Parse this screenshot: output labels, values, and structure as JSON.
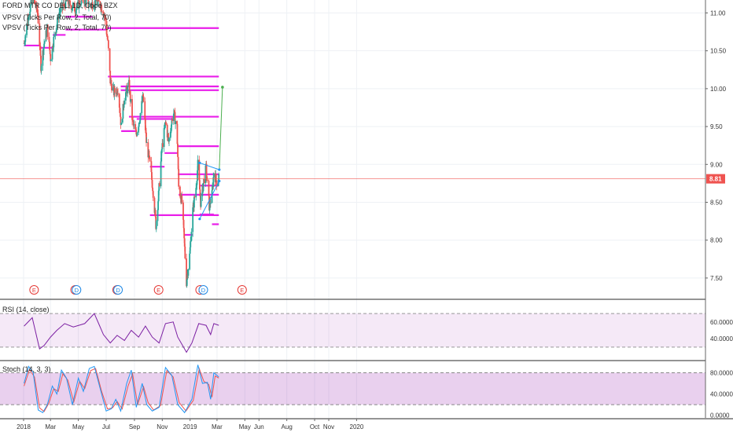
{
  "chart_data": {
    "type": "candlestick",
    "title": "FORD MTR CO DEL, 1D, Cboe BZX",
    "legend": [
      "VPSV (Ticks Per Row, 2, Total, 70)",
      "VPSV (Ticks Per Row, 2, Total, 70)"
    ],
    "price_axis": {
      "ticks": [
        "11.00",
        "10.50",
        "10.00",
        "9.50",
        "9.00",
        "8.50",
        "8.00",
        "7.50"
      ],
      "ylim": [
        7.25,
        11.15
      ]
    },
    "last_price": {
      "value": 8.81,
      "label": "8.81",
      "color": "#ef5350"
    },
    "time_axis": {
      "ticks": [
        "2018",
        "Mar",
        "May",
        "Jul",
        "Sep",
        "Nov",
        "2019",
        "Mar",
        "May",
        "Jun",
        "Aug",
        "Oct",
        "Nov",
        "2020"
      ]
    },
    "price_path": [
      [
        "2018-01-02",
        10.6
      ],
      [
        "2018-01-12",
        11.0
      ],
      [
        "2018-01-22",
        11.2
      ],
      [
        "2018-02-01",
        11.0
      ],
      [
        "2018-02-08",
        10.3
      ],
      [
        "2018-02-15",
        10.6
      ],
      [
        "2018-02-22",
        10.8
      ],
      [
        "2018-03-01",
        10.4
      ],
      [
        "2018-03-08",
        10.65
      ],
      [
        "2018-03-20",
        11.0
      ],
      [
        "2018-04-05",
        11.15
      ],
      [
        "2018-04-25",
        11.05
      ],
      [
        "2018-05-10",
        11.2
      ],
      [
        "2018-05-25",
        11.1
      ],
      [
        "2018-06-10",
        11.15
      ],
      [
        "2018-06-20",
        11.1
      ],
      [
        "2018-06-28",
        10.95
      ],
      [
        "2018-07-05",
        10.6
      ],
      [
        "2018-07-10",
        10.1
      ],
      [
        "2018-07-18",
        9.95
      ],
      [
        "2018-07-27",
        10.0
      ],
      [
        "2018-08-03",
        9.5
      ],
      [
        "2018-08-10",
        9.9
      ],
      [
        "2018-08-20",
        10.05
      ],
      [
        "2018-08-28",
        9.55
      ],
      [
        "2018-09-05",
        9.4
      ],
      [
        "2018-09-12",
        9.6
      ],
      [
        "2018-09-20",
        9.9
      ],
      [
        "2018-09-27",
        9.3
      ],
      [
        "2018-10-05",
        9.0
      ],
      [
        "2018-10-11",
        8.7
      ],
      [
        "2018-10-18",
        8.2
      ],
      [
        "2018-10-24",
        8.6
      ],
      [
        "2018-10-31",
        9.2
      ],
      [
        "2018-11-08",
        9.55
      ],
      [
        "2018-11-15",
        9.3
      ],
      [
        "2018-11-25",
        9.7
      ],
      [
        "2018-12-03",
        9.5
      ],
      [
        "2018-12-07",
        8.7
      ],
      [
        "2018-12-14",
        8.5
      ],
      [
        "2018-12-19",
        8.0
      ],
      [
        "2018-12-24",
        7.45
      ],
      [
        "2018-12-31",
        7.8
      ],
      [
        "2019-01-07",
        8.4
      ],
      [
        "2019-01-14",
        8.7
      ],
      [
        "2019-01-18",
        9.0
      ],
      [
        "2019-01-24",
        8.5
      ],
      [
        "2019-01-30",
        8.75
      ],
      [
        "2019-02-05",
        8.95
      ],
      [
        "2019-02-12",
        8.45
      ],
      [
        "2019-02-18",
        8.6
      ],
      [
        "2019-02-22",
        8.9
      ],
      [
        "2019-03-01",
        8.75
      ],
      [
        "2019-03-05",
        8.85
      ]
    ],
    "volume_profile_pocs": [
      {
        "price": 10.57,
        "start": "2018-01-02",
        "end": "2018-02-07"
      },
      {
        "price": 10.54,
        "start": "2018-02-07",
        "end": "2018-03-06"
      },
      {
        "price": 10.71,
        "start": "2018-03-06",
        "end": "2018-04-03"
      },
      {
        "price": 10.78,
        "start": "2018-04-03",
        "end": "2018-07-03"
      },
      {
        "price": 10.95,
        "start": "2018-04-03",
        "end": "2018-06-01"
      },
      {
        "price": 10.8,
        "start": "2018-07-03",
        "end": "2019-03-05"
      },
      {
        "price": 10.16,
        "start": "2018-07-05",
        "end": "2019-03-05"
      },
      {
        "price": 10.03,
        "start": "2018-08-02",
        "end": "2019-03-05"
      },
      {
        "price": 9.98,
        "start": "2018-08-02",
        "end": "2019-03-05"
      },
      {
        "price": 9.63,
        "start": "2018-08-20",
        "end": "2019-03-05"
      },
      {
        "price": 9.6,
        "start": "2018-09-06",
        "end": "2018-11-26"
      },
      {
        "price": 9.44,
        "start": "2018-08-03",
        "end": "2018-09-06"
      },
      {
        "price": 9.24,
        "start": "2018-12-04",
        "end": "2019-03-05"
      },
      {
        "price": 9.15,
        "start": "2018-11-06",
        "end": "2018-12-04"
      },
      {
        "price": 8.97,
        "start": "2018-10-05",
        "end": "2018-11-06"
      },
      {
        "price": 8.87,
        "start": "2018-12-05",
        "end": "2019-03-05"
      },
      {
        "price": 8.72,
        "start": "2019-01-24",
        "end": "2019-03-05"
      },
      {
        "price": 8.6,
        "start": "2018-12-07",
        "end": "2019-03-05"
      },
      {
        "price": 8.33,
        "start": "2018-10-05",
        "end": "2019-03-05"
      },
      {
        "price": 8.34,
        "start": "2019-01-22",
        "end": "2019-02-22"
      },
      {
        "price": 8.21,
        "start": "2019-02-18",
        "end": "2019-03-05"
      },
      {
        "price": 8.07,
        "start": "2018-12-19",
        "end": "2019-01-07"
      }
    ],
    "triangle": {
      "upper": [
        [
          "2019-01-22",
          9.02
        ],
        [
          "2019-03-06",
          8.93
        ]
      ],
      "lower": [
        [
          "2019-01-22",
          8.28
        ],
        [
          "2019-03-06",
          8.78
        ]
      ],
      "forecast": [
        [
          "2019-03-06",
          8.93
        ],
        [
          "2019-03-13",
          10.02
        ]
      ]
    },
    "earnings": [
      {
        "date": "2018-01-24",
        "label": "E"
      },
      {
        "date": "2018-04-24",
        "label": "E"
      },
      {
        "date": "2018-04-27",
        "label": "D"
      },
      {
        "date": "2018-07-25",
        "label": "E"
      },
      {
        "date": "2018-07-27",
        "label": "D"
      },
      {
        "date": "2018-10-24",
        "label": "E"
      },
      {
        "date": "2019-01-23",
        "label": "E"
      },
      {
        "date": "2019-01-30",
        "label": "D"
      },
      {
        "date": "2019-04-25",
        "label": "E"
      }
    ],
    "rsi": {
      "legend": "RSI (14, close)",
      "ticks": [
        "60.0000",
        "40.0000"
      ],
      "ylim": [
        15,
        85
      ],
      "bands": [
        70,
        30
      ],
      "path": [
        [
          "2018-01-02",
          55
        ],
        [
          "2018-01-20",
          65
        ],
        [
          "2018-02-05",
          28
        ],
        [
          "2018-02-15",
          32
        ],
        [
          "2018-03-01",
          42
        ],
        [
          "2018-03-15",
          50
        ],
        [
          "2018-04-01",
          58
        ],
        [
          "2018-04-20",
          54
        ],
        [
          "2018-05-15",
          58
        ],
        [
          "2018-06-05",
          70
        ],
        [
          "2018-06-25",
          45
        ],
        [
          "2018-07-10",
          35
        ],
        [
          "2018-07-25",
          44
        ],
        [
          "2018-08-10",
          38
        ],
        [
          "2018-08-25",
          50
        ],
        [
          "2018-09-10",
          42
        ],
        [
          "2018-09-25",
          55
        ],
        [
          "2018-10-10",
          42
        ],
        [
          "2018-10-25",
          35
        ],
        [
          "2018-11-08",
          58
        ],
        [
          "2018-11-25",
          60
        ],
        [
          "2018-12-05",
          42
        ],
        [
          "2018-12-24",
          24
        ],
        [
          "2019-01-05",
          35
        ],
        [
          "2019-01-20",
          58
        ],
        [
          "2019-02-05",
          56
        ],
        [
          "2019-02-15",
          45
        ],
        [
          "2019-02-22",
          58
        ],
        [
          "2019-03-05",
          56
        ]
      ]
    },
    "stoch": {
      "legend": "Stoch (14, 3, 3)",
      "ticks": [
        "80.0000",
        "40.0000",
        "0.0000"
      ],
      "ylim": [
        -5,
        100
      ],
      "bands": [
        80,
        20
      ],
      "k_color": "#2196f3",
      "d_color": "#ef5350",
      "k": [
        [
          "2018-01-02",
          60
        ],
        [
          "2018-01-12",
          92
        ],
        [
          "2018-01-22",
          80
        ],
        [
          "2018-02-02",
          10
        ],
        [
          "2018-02-12",
          5
        ],
        [
          "2018-02-22",
          20
        ],
        [
          "2018-03-05",
          55
        ],
        [
          "2018-03-15",
          40
        ],
        [
          "2018-03-25",
          85
        ],
        [
          "2018-04-05",
          70
        ],
        [
          "2018-04-18",
          20
        ],
        [
          "2018-05-01",
          70
        ],
        [
          "2018-05-12",
          45
        ],
        [
          "2018-05-25",
          88
        ],
        [
          "2018-06-05",
          92
        ],
        [
          "2018-06-18",
          50
        ],
        [
          "2018-07-01",
          8
        ],
        [
          "2018-07-12",
          12
        ],
        [
          "2018-07-22",
          30
        ],
        [
          "2018-08-02",
          8
        ],
        [
          "2018-08-15",
          60
        ],
        [
          "2018-08-25",
          85
        ],
        [
          "2018-09-05",
          15
        ],
        [
          "2018-09-18",
          60
        ],
        [
          "2018-09-28",
          20
        ],
        [
          "2018-10-10",
          8
        ],
        [
          "2018-10-25",
          15
        ],
        [
          "2018-11-08",
          90
        ],
        [
          "2018-11-22",
          75
        ],
        [
          "2018-12-05",
          20
        ],
        [
          "2018-12-20",
          5
        ],
        [
          "2019-01-05",
          30
        ],
        [
          "2019-01-18",
          95
        ],
        [
          "2019-01-28",
          60
        ],
        [
          "2019-02-08",
          62
        ],
        [
          "2019-02-15",
          30
        ],
        [
          "2019-02-22",
          80
        ],
        [
          "2019-03-05",
          72
        ]
      ],
      "d": [
        [
          "2018-01-02",
          55
        ],
        [
          "2018-01-14",
          86
        ],
        [
          "2018-01-25",
          72
        ],
        [
          "2018-02-05",
          14
        ],
        [
          "2018-02-15",
          7
        ],
        [
          "2018-02-25",
          22
        ],
        [
          "2018-03-08",
          50
        ],
        [
          "2018-03-18",
          45
        ],
        [
          "2018-03-28",
          78
        ],
        [
          "2018-04-08",
          66
        ],
        [
          "2018-04-21",
          25
        ],
        [
          "2018-05-04",
          64
        ],
        [
          "2018-05-15",
          50
        ],
        [
          "2018-05-28",
          84
        ],
        [
          "2018-06-08",
          88
        ],
        [
          "2018-06-21",
          45
        ],
        [
          "2018-07-04",
          12
        ],
        [
          "2018-07-15",
          14
        ],
        [
          "2018-07-25",
          26
        ],
        [
          "2018-08-05",
          12
        ],
        [
          "2018-08-18",
          55
        ],
        [
          "2018-08-28",
          78
        ],
        [
          "2018-09-08",
          20
        ],
        [
          "2018-09-21",
          54
        ],
        [
          "2018-10-01",
          24
        ],
        [
          "2018-10-13",
          10
        ],
        [
          "2018-10-28",
          18
        ],
        [
          "2018-11-11",
          84
        ],
        [
          "2018-11-25",
          72
        ],
        [
          "2018-12-08",
          24
        ],
        [
          "2018-12-23",
          8
        ],
        [
          "2019-01-08",
          28
        ],
        [
          "2019-01-21",
          88
        ],
        [
          "2019-01-31",
          64
        ],
        [
          "2019-02-11",
          58
        ],
        [
          "2019-02-18",
          34
        ],
        [
          "2019-02-25",
          74
        ],
        [
          "2019-03-05",
          70
        ]
      ]
    }
  }
}
